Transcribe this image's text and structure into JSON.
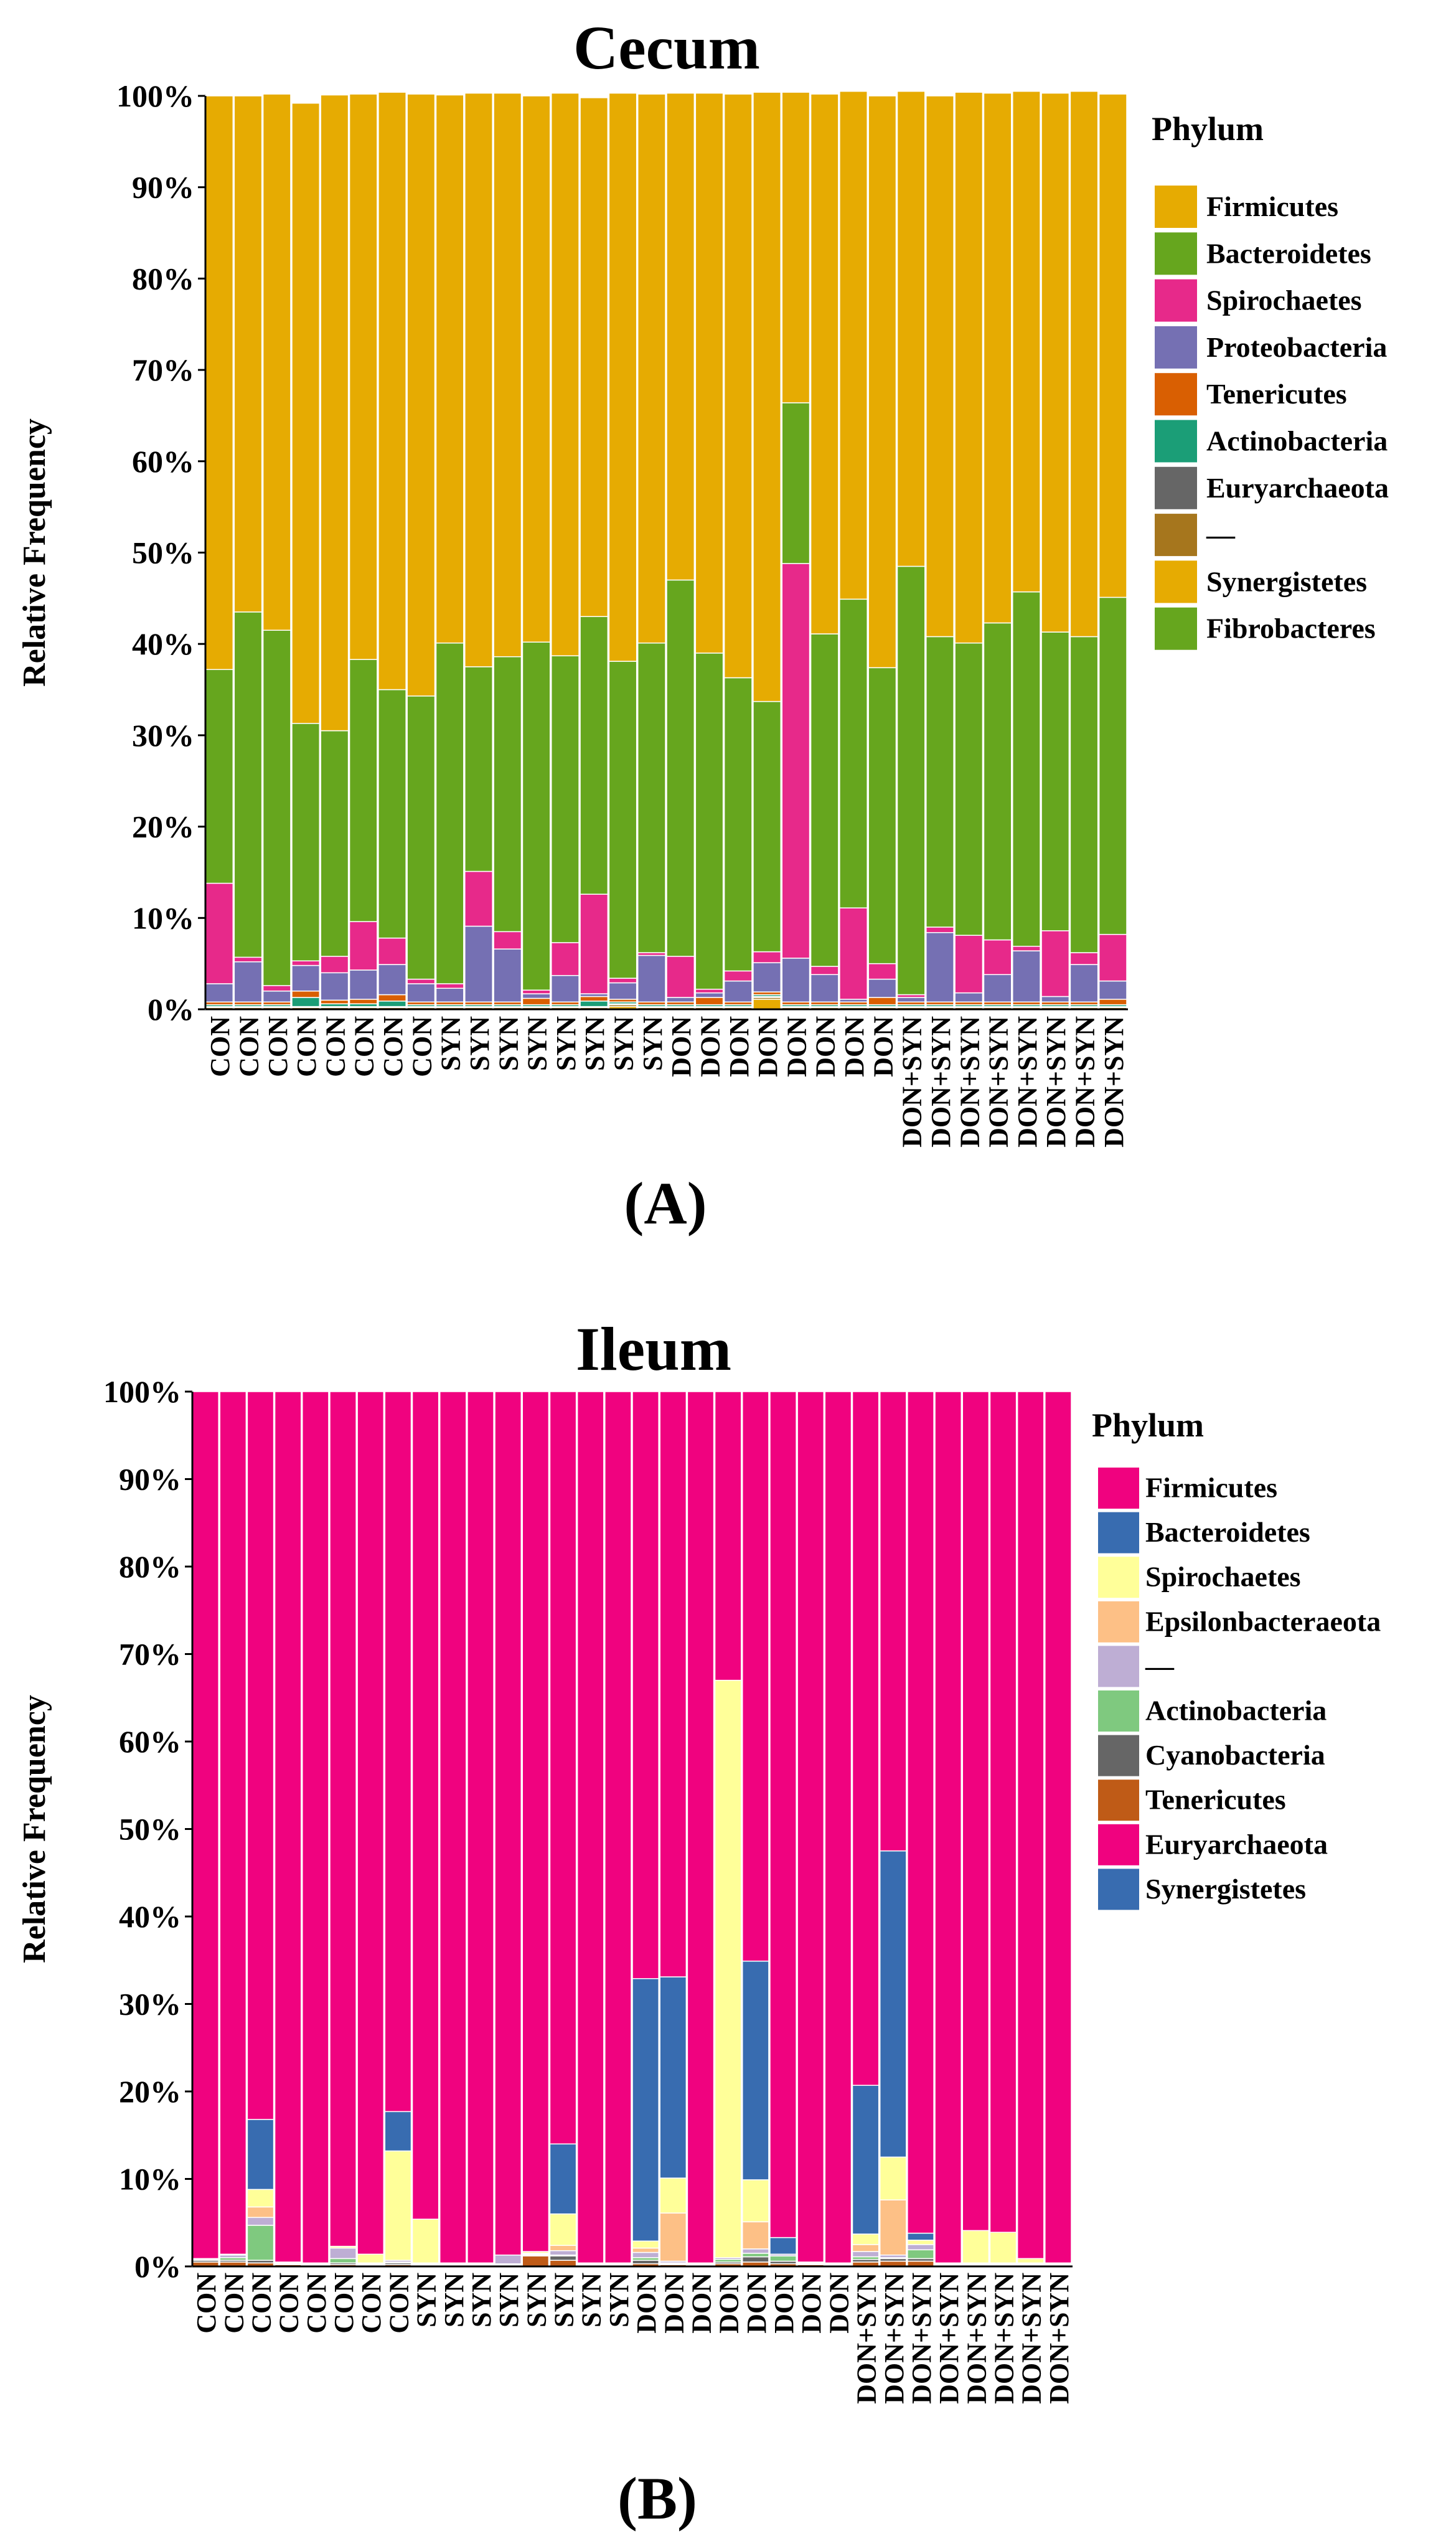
{
  "chart_data": [
    {
      "type": "stacked-bar",
      "title": "Cecum",
      "panel_label": "(A)",
      "ylabel": "Relative Frequency",
      "ylim": [
        0,
        100
      ],
      "yticks": [
        "0%",
        "10%",
        "20%",
        "30%",
        "40%",
        "50%",
        "60%",
        "70%",
        "80%",
        "90%",
        "100%"
      ],
      "legend_title": "Phylum",
      "legend_position": "right",
      "categories": [
        "CON",
        "CON",
        "CON",
        "CON",
        "CON",
        "CON",
        "CON",
        "CON",
        "SYN",
        "SYN",
        "SYN",
        "SYN",
        "SYN",
        "SYN",
        "SYN",
        "SYN",
        "DON",
        "DON",
        "DON",
        "DON",
        "DON",
        "DON",
        "DON",
        "DON",
        "DON+SYN",
        "DON+SYN",
        "DON+SYN",
        "DON+SYN",
        "DON+SYN",
        "DON+SYN",
        "DON+SYN",
        "DON+SYN"
      ],
      "series": [
        {
          "name": "Fibrobacteres",
          "color": "#66a61e",
          "values": [
            0,
            0,
            0,
            0,
            0,
            0,
            0,
            0,
            0,
            0,
            0,
            0,
            0,
            0,
            0,
            0,
            0,
            0,
            0,
            0,
            0,
            0,
            0,
            0,
            0,
            0,
            0,
            0,
            0,
            0,
            0,
            0
          ]
        },
        {
          "name": "Synergistetes",
          "color": "#e6ab02",
          "values": [
            0,
            0,
            0,
            0,
            0,
            0,
            0,
            0,
            0,
            0,
            0,
            0,
            0,
            0,
            0.3,
            0,
            0,
            0,
            0,
            1.1,
            0,
            0,
            0,
            0,
            0,
            0,
            0,
            0,
            0,
            0,
            0,
            0
          ]
        },
        {
          "name": "—",
          "color": "#a6761d",
          "values": [
            0.2,
            0.2,
            0.2,
            0.2,
            0.2,
            0.2,
            0.2,
            0.2,
            0.2,
            0.2,
            0.2,
            0.2,
            0.2,
            0.2,
            0.2,
            0.2,
            0.2,
            0.2,
            0.2,
            0.2,
            0.2,
            0.2,
            0.2,
            0.2,
            0.2,
            0.2,
            0.2,
            0.2,
            0.2,
            0.2,
            0.2,
            0.2
          ]
        },
        {
          "name": "Euryarchaeota",
          "color": "#666666",
          "values": [
            0.1,
            0.1,
            0.1,
            0.1,
            0.1,
            0.1,
            0.1,
            0.1,
            0.1,
            0.1,
            0.1,
            0.1,
            0.1,
            0.1,
            0.1,
            0.1,
            0.1,
            0.1,
            0.1,
            0.1,
            0.1,
            0.1,
            0.1,
            0.1,
            0.1,
            0.1,
            0.1,
            0.1,
            0.1,
            0.1,
            0.1,
            0.1
          ]
        },
        {
          "name": "Actinobacteria",
          "color": "#1b9e77",
          "values": [
            0.2,
            0.2,
            0.2,
            1.0,
            0.3,
            0.3,
            0.6,
            0.2,
            0.2,
            0.2,
            0.2,
            0.2,
            0.2,
            0.6,
            0.2,
            0.2,
            0.2,
            0.2,
            0.2,
            0.2,
            0.2,
            0.2,
            0.2,
            0.2,
            0.2,
            0.2,
            0.2,
            0.2,
            0.2,
            0.2,
            0.2,
            0.2
          ]
        },
        {
          "name": "Tenericutes",
          "color": "#d95f02",
          "values": [
            0.3,
            0.3,
            0.3,
            0.7,
            0.4,
            0.5,
            0.7,
            0.3,
            0.3,
            0.3,
            0.3,
            0.7,
            0.3,
            0.5,
            0.3,
            0.3,
            0.3,
            0.8,
            0.3,
            0.3,
            0.3,
            0.3,
            0.3,
            0.8,
            0.3,
            0.3,
            0.3,
            0.3,
            0.3,
            0.3,
            0.3,
            0.6
          ]
        },
        {
          "name": "Proteobacteria",
          "color": "#7570b3",
          "values": [
            2.0,
            4.4,
            1.2,
            2.8,
            3.0,
            3.2,
            3.3,
            2.0,
            1.5,
            8.3,
            5.8,
            0.5,
            2.9,
            0.3,
            1.8,
            5.1,
            0.5,
            0.5,
            2.3,
            3.2,
            4.8,
            3.0,
            0.3,
            2.0,
            0.5,
            7.6,
            1.0,
            3.0,
            5.6,
            0.6,
            4.1,
            2.0
          ]
        },
        {
          "name": "Spirochaetes",
          "color": "#e7298a",
          "values": [
            11.0,
            0.5,
            0.6,
            0.5,
            1.8,
            5.3,
            2.9,
            0.5,
            0.5,
            6.0,
            1.9,
            0.4,
            3.6,
            10.9,
            0.5,
            0.3,
            4.5,
            0.4,
            1.1,
            1.2,
            43.2,
            0.9,
            10.0,
            1.7,
            0.3,
            0.6,
            6.3,
            3.8,
            0.5,
            7.2,
            1.3,
            5.1
          ]
        },
        {
          "name": "Bacteroidetes",
          "color": "#66a61e",
          "values": [
            23.4,
            37.8,
            38.9,
            26.0,
            24.7,
            28.7,
            27.2,
            31.0,
            37.3,
            22.4,
            30.1,
            38.1,
            31.4,
            30.4,
            34.7,
            33.9,
            41.2,
            36.8,
            32.1,
            27.4,
            17.6,
            36.4,
            33.8,
            32.4,
            46.9,
            31.8,
            32.0,
            34.7,
            38.8,
            32.7,
            34.6,
            36.9
          ]
        },
        {
          "name": "Firmicutes",
          "color": "#e6ab02",
          "values": [
            62.8,
            56.5,
            58.7,
            67.9,
            69.6,
            61.9,
            65.4,
            65.9,
            60.0,
            62.8,
            61.7,
            59.8,
            61.6,
            56.8,
            62.2,
            60.1,
            53.3,
            61.3,
            63.9,
            66.7,
            34.0,
            59.1,
            55.6,
            62.6,
            52.0,
            59.2,
            60.3,
            58.0,
            54.8,
            59.0,
            59.7,
            55.1
          ]
        }
      ]
    },
    {
      "type": "stacked-bar",
      "title": "Ileum",
      "panel_label": "(B)",
      "ylabel": "Relative Frequency",
      "ylim": [
        0,
        100
      ],
      "yticks": [
        "0%",
        "10%",
        "20%",
        "30%",
        "40%",
        "50%",
        "60%",
        "70%",
        "80%",
        "90%",
        "100%"
      ],
      "legend_title": "Phylum",
      "legend_position": "right",
      "categories": [
        "CON",
        "CON",
        "CON",
        "CON",
        "CON",
        "CON",
        "CON",
        "CON",
        "SYN",
        "SYN",
        "SYN",
        "SYN",
        "SYN",
        "SYN",
        "SYN",
        "SYN",
        "DON",
        "DON",
        "DON",
        "DON",
        "DON",
        "DON",
        "DON",
        "DON",
        "DON+SYN",
        "DON+SYN",
        "DON+SYN",
        "DON+SYN",
        "DON+SYN",
        "DON+SYN",
        "DON+SYN",
        "DON+SYN"
      ],
      "series": [
        {
          "name": "Synergistetes",
          "color": "#386cb0",
          "values": [
            0,
            0,
            0,
            0,
            0,
            0,
            0,
            0,
            0,
            0,
            0,
            0,
            0,
            0,
            0,
            0,
            0,
            0,
            0,
            0,
            0,
            0,
            0,
            0,
            0,
            0,
            0,
            0,
            0,
            0,
            0,
            0
          ]
        },
        {
          "name": "Euryarchaeota",
          "color": "#f0027f",
          "values": [
            0,
            0,
            0,
            0,
            0,
            0,
            0,
            0,
            0,
            0,
            0,
            0,
            0,
            0,
            0,
            0,
            0,
            0,
            0,
            0,
            0,
            0,
            0,
            0,
            0,
            0,
            0,
            0,
            0,
            0,
            0,
            0
          ]
        },
        {
          "name": "Tenericutes",
          "color": "#bf5b17",
          "values": [
            0.5,
            0.5,
            0.4,
            0.2,
            0.1,
            0.2,
            0.1,
            0.2,
            0.1,
            0.1,
            0.1,
            0.1,
            1.2,
            0.7,
            0.1,
            0.1,
            0.3,
            0.2,
            0.1,
            0.3,
            0.5,
            0.3,
            0.2,
            0.1,
            0.5,
            0.6,
            0.6,
            0.1,
            0.1,
            0.1,
            0.1,
            0.1
          ]
        },
        {
          "name": "Cyanobacteria",
          "color": "#666666",
          "values": [
            0.2,
            0.2,
            0.3,
            0.1,
            0.1,
            0.2,
            0.1,
            0.2,
            0.1,
            0.1,
            0.1,
            0.1,
            0.1,
            0.5,
            0.1,
            0.1,
            0.4,
            0.1,
            0.1,
            0.2,
            0.6,
            0.3,
            0.1,
            0.1,
            0.3,
            0.3,
            0.3,
            0.1,
            0.1,
            0.1,
            0.1,
            0.1
          ]
        },
        {
          "name": "Actinobacteria",
          "color": "#7fc97f",
          "values": [
            0.1,
            0.3,
            4.0,
            0.1,
            0.1,
            0.5,
            0.1,
            0.1,
            0.1,
            0.1,
            0.1,
            0.1,
            0.1,
            0.1,
            0.1,
            0.1,
            0.3,
            0.1,
            0.1,
            0.3,
            0.4,
            0.6,
            0.1,
            0.1,
            0.3,
            0.1,
            1.0,
            0.1,
            0.1,
            0.1,
            0.1,
            0.1
          ]
        },
        {
          "name": "—",
          "color": "#beaed4",
          "values": [
            0.1,
            0.3,
            0.9,
            0.1,
            0.1,
            1.2,
            0.1,
            0.2,
            0.1,
            0.1,
            0.1,
            1.0,
            0.1,
            0.5,
            0.1,
            0.1,
            0.6,
            0.2,
            0.1,
            0.2,
            0.5,
            0.2,
            0.1,
            0.1,
            0.6,
            0.3,
            0.6,
            0.1,
            0.1,
            0.1,
            0.1,
            0.1
          ]
        },
        {
          "name": "Epsilonbacteraeota",
          "color": "#fdc086",
          "values": [
            0,
            0,
            1.2,
            0,
            0,
            0,
            0,
            0,
            0,
            0,
            0,
            0,
            0,
            0.6,
            0,
            0,
            0.5,
            5.5,
            0,
            0,
            3.1,
            0,
            0,
            0,
            0.8,
            6.3,
            0,
            0,
            0,
            0,
            0,
            0
          ]
        },
        {
          "name": "Spirochaetes",
          "color": "#ffff99",
          "values": [
            0,
            0.1,
            2.0,
            0,
            0,
            0.2,
            1.0,
            12.5,
            5.0,
            0,
            0,
            0,
            0.2,
            3.6,
            0,
            0,
            0.8,
            4.0,
            0,
            66.0,
            4.8,
            0,
            0,
            0,
            1.2,
            4.9,
            0.5,
            0,
            3.7,
            3.5,
            0.5,
            0
          ]
        },
        {
          "name": "Bacteroidetes",
          "color": "#386cb0",
          "values": [
            0,
            0,
            8.0,
            0,
            0,
            0,
            0,
            4.5,
            0,
            0,
            0,
            0,
            0,
            8.0,
            0,
            0,
            30.0,
            23.0,
            0,
            0,
            25.0,
            1.9,
            0,
            0,
            17.0,
            35.0,
            0.8,
            0,
            0,
            0,
            0,
            0
          ]
        },
        {
          "name": "Firmicutes",
          "color": "#f0027f",
          "values": [
            99.1,
            98.6,
            83.2,
            99.5,
            99.6,
            97.7,
            98.6,
            82.3,
            94.6,
            99.6,
            99.6,
            98.7,
            98.3,
            86.0,
            99.6,
            99.6,
            67.1,
            66.9,
            99.6,
            33.0,
            65.1,
            96.7,
            99.5,
            99.6,
            79.3,
            52.5,
            96.2,
            99.6,
            95.9,
            96.1,
            99.1,
            99.6
          ]
        }
      ]
    }
  ]
}
